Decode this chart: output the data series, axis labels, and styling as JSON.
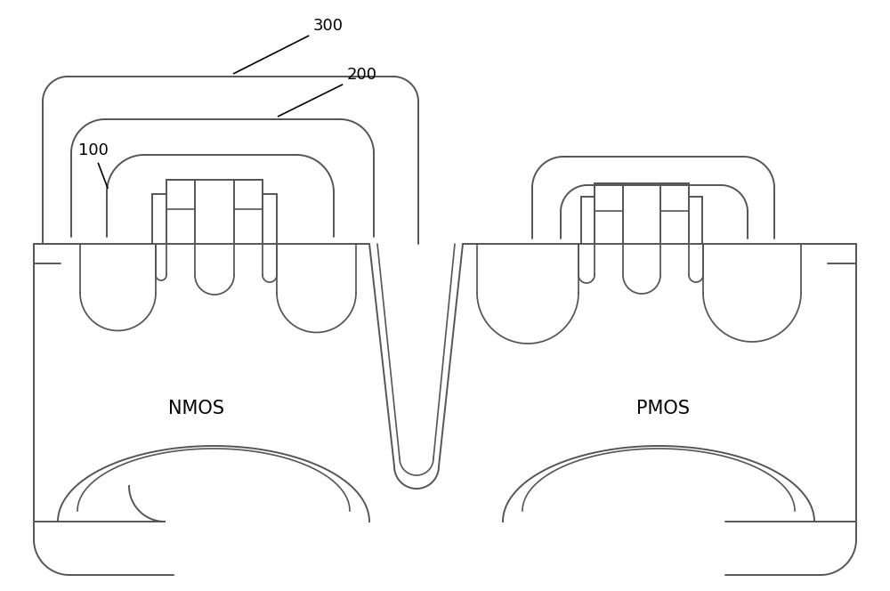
{
  "bg_color": "#ffffff",
  "line_color": "#555555",
  "lw": 1.4,
  "fig_width": 10.0,
  "fig_height": 6.64,
  "label_300": "300",
  "label_200": "200",
  "label_100": "100",
  "label_nmos": "NMOS",
  "label_pmos": "PMOS",
  "font_size_anno": 13,
  "font_size_region": 15
}
